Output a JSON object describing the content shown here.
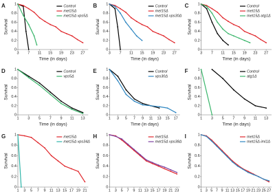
{
  "chart_data": [
    {
      "type": "line",
      "panel": "A",
      "ylabel": "Survival",
      "xlabel": "Time (in days)",
      "xlim": [
        3,
        29
      ],
      "xticks": [
        3,
        7,
        11,
        15,
        19,
        23,
        27
      ],
      "ylim": [
        0,
        1
      ],
      "yticks": [
        0,
        0.2,
        0.4,
        0.6,
        0.8,
        1
      ],
      "series": [
        {
          "name": "Control",
          "color": "#000000",
          "x": [
            3,
            5,
            6,
            7
          ],
          "values": [
            1,
            0.95,
            0.4,
            0
          ]
        },
        {
          "name": "met15Δ",
          "color": "#e0262b",
          "x": [
            3,
            5,
            7,
            9,
            11,
            13,
            15,
            17,
            19,
            21,
            23,
            25,
            27
          ],
          "values": [
            1,
            0.97,
            0.9,
            0.82,
            0.7,
            0.62,
            0.55,
            0.5,
            0.4,
            0.35,
            0.3,
            0.22,
            0.15
          ]
        },
        {
          "name": "met15Δ vps5Δ",
          "color": "#39b56a",
          "x": [
            3,
            5,
            7,
            9,
            10
          ],
          "values": [
            1,
            0.75,
            0.55,
            0.3,
            0.1
          ]
        }
      ]
    },
    {
      "type": "line",
      "panel": "B",
      "ylabel": "Survival",
      "xlabel": "Time (in days)",
      "xlim": [
        3,
        29
      ],
      "xticks": [
        3,
        7,
        11,
        15,
        19,
        23,
        27
      ],
      "ylim": [
        0,
        1
      ],
      "yticks": [
        0,
        0.2,
        0.4,
        0.6,
        0.8,
        1
      ],
      "series": [
        {
          "name": "Control",
          "color": "#000000",
          "x": [
            3,
            5,
            6,
            7
          ],
          "values": [
            1,
            0.9,
            0.5,
            0
          ]
        },
        {
          "name": "met15Δ",
          "color": "#e0262b",
          "x": [
            3,
            5,
            7,
            9,
            11,
            13,
            15,
            17,
            19,
            21,
            23,
            25,
            27
          ],
          "values": [
            1,
            0.97,
            0.9,
            0.82,
            0.7,
            0.62,
            0.55,
            0.5,
            0.4,
            0.35,
            0.3,
            0.22,
            0.15
          ]
        },
        {
          "name": "met15Δ vps30Δ",
          "color": "#2e86c1",
          "x": [
            3,
            5,
            7,
            9,
            11,
            13,
            15
          ],
          "values": [
            1,
            0.95,
            0.8,
            0.6,
            0.45,
            0.3,
            0.2
          ]
        }
      ]
    },
    {
      "type": "line",
      "panel": "C",
      "ylabel": "Survival",
      "xlabel": "Time (in days)",
      "xlim": [
        3,
        29
      ],
      "xticks": [
        3,
        7,
        11,
        15,
        19,
        23,
        27
      ],
      "ylim": [
        0,
        1
      ],
      "yticks": [
        0,
        0.2,
        0.4,
        0.6,
        0.8,
        1
      ],
      "series": [
        {
          "name": "Control",
          "color": "#000000",
          "x": [
            3,
            5,
            7,
            9,
            11,
            13
          ],
          "values": [
            1,
            0.9,
            0.6,
            0.35,
            0.2,
            0.1
          ]
        },
        {
          "name": "met15Δ",
          "color": "#e0262b",
          "x": [
            3,
            5,
            7,
            9,
            11,
            13,
            15,
            17,
            19,
            21,
            23,
            25,
            27
          ],
          "values": [
            1,
            0.97,
            0.9,
            0.82,
            0.7,
            0.62,
            0.55,
            0.5,
            0.4,
            0.35,
            0.3,
            0.22,
            0.15
          ]
        },
        {
          "name": "met15Δ atg1Δ",
          "color": "#39b56a",
          "x": [
            3,
            5,
            7,
            9,
            11,
            13,
            15,
            17,
            19,
            21
          ],
          "values": [
            1,
            0.95,
            0.8,
            0.6,
            0.45,
            0.35,
            0.3,
            0.25,
            0.2,
            0.15
          ]
        }
      ]
    },
    {
      "type": "line",
      "panel": "D",
      "ylabel": "Survival",
      "xlabel": "Time (in days)",
      "xlim": [
        1,
        14
      ],
      "xticks": [
        1,
        3,
        5,
        7,
        9,
        11,
        13
      ],
      "ylim": [
        0,
        1
      ],
      "yticks": [
        0,
        0.2,
        0.4,
        0.6,
        0.8,
        1
      ],
      "series": [
        {
          "name": "Control",
          "color": "#000000",
          "x": [
            1,
            3,
            5,
            7,
            9,
            11,
            13
          ],
          "values": [
            1,
            0.85,
            0.7,
            0.5,
            0.3,
            0.15,
            0.05
          ]
        },
        {
          "name": "vps5Δ",
          "color": "#39b56a",
          "x": [
            1,
            3,
            5,
            7,
            9,
            11,
            13
          ],
          "values": [
            1,
            0.82,
            0.65,
            0.45,
            0.25,
            0.12,
            0.03
          ]
        }
      ]
    },
    {
      "type": "line",
      "panel": "E",
      "ylabel": "Survival",
      "xlabel": "Time (in days)",
      "xlim": [
        1,
        18
      ],
      "xticks": [
        1,
        3,
        5,
        7,
        9,
        11,
        13,
        15,
        17
      ],
      "ylim": [
        0,
        1
      ],
      "yticks": [
        0,
        0.2,
        0.4,
        0.6,
        0.8,
        1
      ],
      "series": [
        {
          "name": "Control",
          "color": "#000000",
          "x": [
            1,
            3,
            5,
            7,
            9,
            11,
            13
          ],
          "values": [
            1,
            0.85,
            0.55,
            0.35,
            0.25,
            0.2,
            0.15
          ]
        },
        {
          "name": "vps30Δ",
          "color": "#2e86c1",
          "x": [
            1,
            3,
            5,
            7,
            9,
            11,
            13,
            15,
            17
          ],
          "values": [
            1,
            0.75,
            0.45,
            0.3,
            0.22,
            0.2,
            0.18,
            0.15,
            0.05
          ]
        }
      ]
    },
    {
      "type": "line",
      "panel": "F",
      "ylabel": "Survival",
      "xlabel": "Time (in days)",
      "xlim": [
        1,
        14
      ],
      "xticks": [
        1,
        3,
        5,
        7,
        9,
        11,
        13
      ],
      "ylim": [
        0,
        1
      ],
      "yticks": [
        0,
        0.2,
        0.4,
        0.6,
        0.8,
        1
      ],
      "series": [
        {
          "name": "Control",
          "color": "#000000",
          "x": [
            3,
            5,
            7,
            9,
            11,
            13
          ],
          "values": [
            1,
            0.8,
            0.55,
            0.35,
            0.2,
            0.15
          ]
        },
        {
          "name": "atg1Δ",
          "color": "#39b56a",
          "x": [
            1,
            3
          ],
          "values": [
            1,
            0
          ]
        }
      ]
    },
    {
      "type": "line",
      "panel": "G",
      "ylabel": "Survival",
      "xlim": [
        1,
        22
      ],
      "xticks": [
        1,
        3,
        5,
        7,
        9,
        11,
        13,
        15,
        17,
        19,
        21
      ],
      "ylim": [
        0,
        1
      ],
      "yticks": [
        0,
        0.2,
        0.4,
        0.6,
        0.8,
        1
      ],
      "series": [
        {
          "name": "met15Δ",
          "color": "#e0262b",
          "x": [
            1,
            3,
            5,
            7,
            9,
            11,
            13,
            15,
            17,
            19,
            21
          ],
          "values": [
            1,
            0.98,
            0.95,
            0.85,
            0.75,
            0.6,
            0.5,
            0.4,
            0.35,
            0.3,
            0.1
          ]
        },
        {
          "name": "met15Δ vps34Δ",
          "color": "#2fb5a9",
          "x": [
            1,
            2
          ],
          "values": [
            1,
            0
          ]
        }
      ]
    },
    {
      "type": "line",
      "panel": "H",
      "ylabel": "Survival",
      "xlim": [
        1,
        24
      ],
      "xticks": [
        1,
        3,
        5,
        7,
        9,
        11,
        13,
        15,
        17,
        19,
        21,
        23
      ],
      "ylim": [
        0,
        1
      ],
      "yticks": [
        0,
        0.2,
        0.4,
        0.6,
        0.8,
        1
      ],
      "series": [
        {
          "name": "met15Δ",
          "color": "#e0262b",
          "x": [
            1,
            3,
            5,
            7,
            9,
            11,
            13,
            15,
            17,
            19,
            21,
            23
          ],
          "values": [
            1,
            0.98,
            0.9,
            0.8,
            0.7,
            0.6,
            0.5,
            0.45,
            0.4,
            0.35,
            0.3,
            0.25
          ]
        },
        {
          "name": "met15Δ vps38Δ",
          "color": "#7b3fa0",
          "x": [
            1,
            3,
            5,
            7,
            9,
            11,
            13,
            15,
            17,
            19,
            21,
            23
          ],
          "values": [
            1,
            0.97,
            0.92,
            0.82,
            0.72,
            0.62,
            0.52,
            0.47,
            0.42,
            0.38,
            0.33,
            0.28
          ]
        }
      ]
    },
    {
      "type": "line",
      "panel": "I",
      "ylabel": "Survival",
      "xlim": [
        1,
        28
      ],
      "xticks": [
        1,
        3,
        5,
        7,
        9,
        11,
        13,
        15,
        17,
        19,
        21,
        23,
        25,
        27
      ],
      "ylim": [
        0,
        1
      ],
      "yticks": [
        0,
        0.2,
        0.4,
        0.6,
        0.8,
        1
      ],
      "series": [
        {
          "name": "met15Δ",
          "color": "#e0262b",
          "x": [
            1,
            3,
            5,
            7,
            9,
            11,
            13,
            15,
            17,
            19,
            21,
            23,
            25,
            27
          ],
          "values": [
            1,
            0.98,
            0.9,
            0.8,
            0.7,
            0.6,
            0.5,
            0.42,
            0.35,
            0.3,
            0.25,
            0.2,
            0.15,
            0.1
          ]
        },
        {
          "name": "met15Δ iml1Δ",
          "color": "#2e86c1",
          "x": [
            1,
            3,
            5,
            7,
            9,
            11,
            13,
            15,
            17,
            19,
            21,
            23,
            25,
            27
          ],
          "values": [
            1,
            0.97,
            0.88,
            0.78,
            0.68,
            0.58,
            0.48,
            0.4,
            0.34,
            0.28,
            0.24,
            0.2,
            0.15,
            0.12
          ]
        }
      ]
    }
  ]
}
